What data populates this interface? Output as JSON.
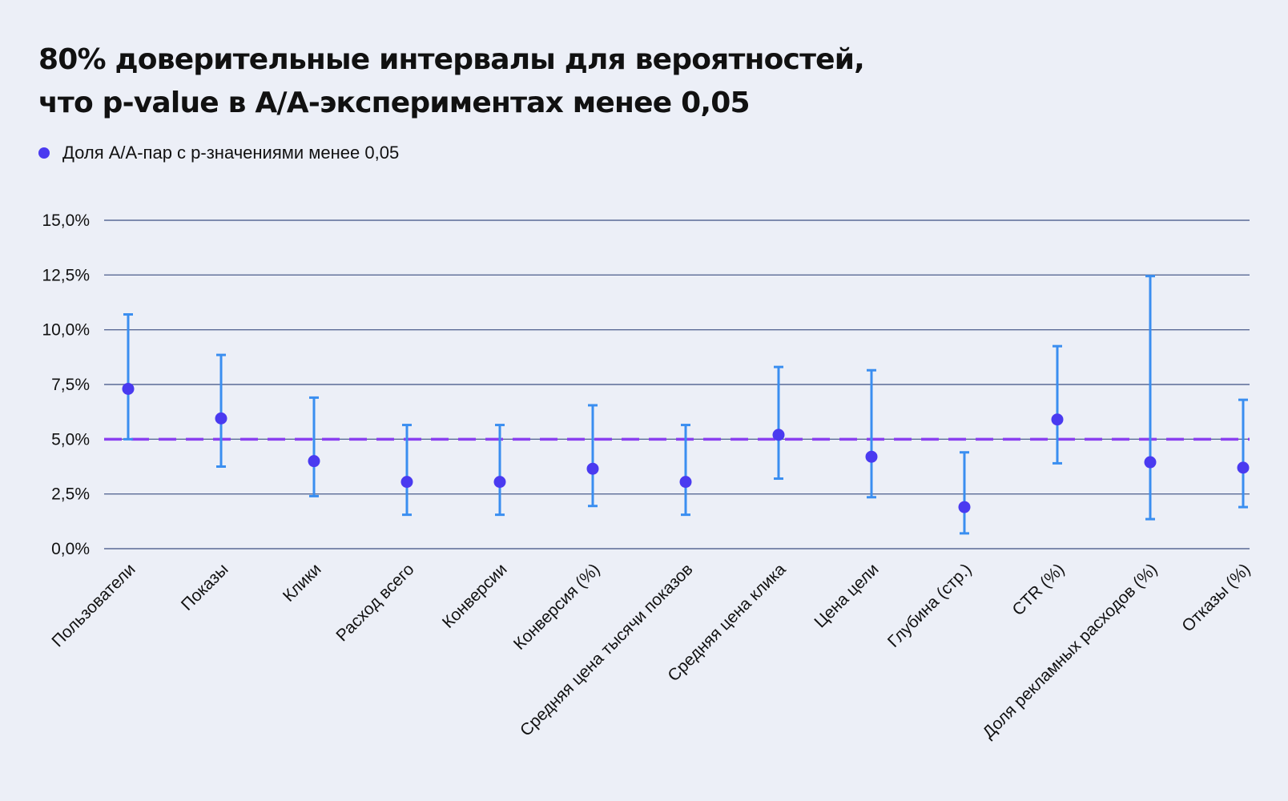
{
  "chart_data": {
    "type": "scatter",
    "title_lines": [
      "80% доверительные интервалы для вероятностей,",
      "что p-value в A/A-экспериментах менее 0,05"
    ],
    "legend": [
      {
        "name": "Доля A/A-пар с p-значениями менее 0,05",
        "color": "#4a3af0"
      }
    ],
    "categories": [
      "Пользователи",
      "Показы",
      "Клики",
      "Расход всего",
      "Конверсии",
      "Конверсия (%)",
      "Средняя цена тысячи показов",
      "Средняя цена клика",
      "Цена цели",
      "Глубина (стр.)",
      "CTR (%)",
      "Доля рекламных расходов (%)",
      "Отказы (%)"
    ],
    "series": [
      {
        "name": "Доля A/A-пар с p-значениями менее 0,05",
        "values": [
          7.3,
          5.95,
          4.0,
          3.05,
          3.05,
          3.65,
          3.05,
          5.2,
          4.2,
          1.9,
          5.9,
          3.95,
          3.7
        ],
        "lower": [
          5.0,
          3.75,
          2.4,
          1.55,
          1.55,
          1.95,
          1.55,
          3.2,
          2.35,
          0.7,
          3.9,
          1.35,
          1.9
        ],
        "upper": [
          10.7,
          8.85,
          6.9,
          5.65,
          5.65,
          6.55,
          5.65,
          8.3,
          8.15,
          4.4,
          9.25,
          12.45,
          6.8
        ]
      }
    ],
    "reference_line": {
      "value": 5.0
    },
    "ylim": [
      0,
      15
    ],
    "yticks": [
      {
        "value": 0,
        "label": "0,0%"
      },
      {
        "value": 2.5,
        "label": "2,5%"
      },
      {
        "value": 5,
        "label": "5,0%"
      },
      {
        "value": 7.5,
        "label": "7,5%"
      },
      {
        "value": 10,
        "label": "10,0%"
      },
      {
        "value": 12.5,
        "label": "12,5%"
      },
      {
        "value": 15,
        "label": "15,0%"
      }
    ],
    "xlabel": "",
    "ylabel": "",
    "grid": true,
    "colors": {
      "point": "#4a3af0",
      "errorbar": "#3a8ef0",
      "reference": "#8a3ff0",
      "grid": "#5a6a96"
    }
  }
}
